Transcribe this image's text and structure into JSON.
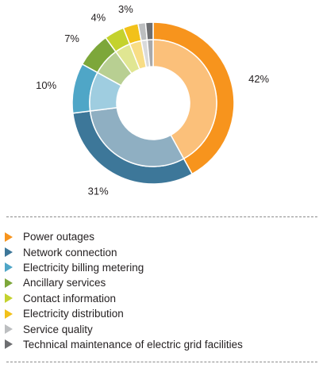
{
  "chart_data": {
    "type": "pie",
    "title": "",
    "series": [
      {
        "name": "Power outages",
        "value": 42,
        "label": "42%",
        "color": "#f7941d",
        "inner_color": "#fbc07a"
      },
      {
        "name": "Network connection",
        "value": 31,
        "label": "31%",
        "color": "#3d7799",
        "inner_color": "#8fafc2"
      },
      {
        "name": "Electricity billing metering",
        "value": 10,
        "label": "10%",
        "color": "#4fa6c7",
        "inner_color": "#9fcde0"
      },
      {
        "name": "Ancillary services",
        "value": 7,
        "label": "7%",
        "color": "#7da73a",
        "inner_color": "#b8cf92"
      },
      {
        "name": "Contact information",
        "value": 4,
        "label": "4%",
        "color": "#c4d22e",
        "inner_color": "#e0e692"
      },
      {
        "name": "Electricity distribution",
        "value": 3,
        "label": "3%",
        "color": "#f2c11a",
        "inner_color": "#f8dd85"
      },
      {
        "name": "Service quality",
        "value": 1.5,
        "label": "",
        "color": "#bcbec0",
        "inner_color": "#d9dadb"
      },
      {
        "name": "Technical maintenance of electric grid facilities",
        "value": 1.5,
        "label": "",
        "color": "#6d6e71",
        "inner_color": "#a8a9ab"
      }
    ],
    "legend_position": "bottom"
  }
}
